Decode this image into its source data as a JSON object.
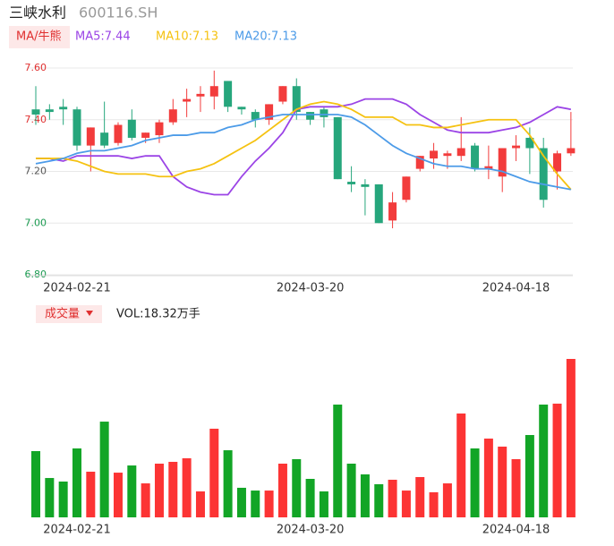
{
  "chart_data": [
    {
      "type": "candlestick",
      "title": "三峡水利",
      "subtitle": "600116.SH",
      "indicator_button": "MA/牛熊",
      "categories": [
        null,
        null,
        null,
        "2024-02-21",
        null,
        null,
        null,
        null,
        null,
        null,
        null,
        null,
        null,
        null,
        null,
        null,
        null,
        null,
        null,
        null,
        "2024-03-20",
        null,
        null,
        null,
        null,
        null,
        null,
        null,
        null,
        null,
        null,
        null,
        null,
        null,
        null,
        "2024-04-18",
        null,
        null,
        null,
        null
      ],
      "open": [
        7.44,
        7.44,
        7.45,
        7.44,
        7.3,
        7.35,
        7.31,
        7.4,
        7.33,
        7.34,
        7.39,
        7.47,
        7.49,
        7.49,
        7.55,
        7.45,
        7.43,
        7.4,
        7.47,
        7.53,
        7.43,
        7.44,
        7.41,
        7.16,
        7.15,
        7.15,
        7.01,
        7.09,
        7.21,
        7.25,
        7.26,
        7.26,
        7.3,
        7.21,
        7.18,
        7.29,
        7.33,
        7.29,
        7.2,
        7.27
      ],
      "close": [
        7.42,
        7.43,
        7.44,
        7.3,
        7.37,
        7.3,
        7.38,
        7.33,
        7.35,
        7.39,
        7.44,
        7.48,
        7.5,
        7.53,
        7.45,
        7.44,
        7.4,
        7.46,
        7.53,
        7.43,
        7.4,
        7.41,
        7.17,
        7.15,
        7.14,
        7.0,
        7.08,
        7.18,
        7.26,
        7.28,
        7.27,
        7.29,
        7.21,
        7.22,
        7.29,
        7.3,
        7.29,
        7.09,
        7.27,
        7.29
      ],
      "low": [
        7.38,
        7.4,
        7.38,
        7.28,
        7.2,
        7.29,
        7.3,
        7.32,
        7.31,
        7.31,
        7.38,
        7.41,
        7.43,
        7.44,
        7.43,
        7.42,
        7.37,
        7.38,
        7.46,
        7.4,
        7.38,
        7.37,
        7.17,
        7.12,
        7.03,
        7.0,
        6.98,
        7.08,
        7.2,
        7.21,
        7.21,
        7.24,
        7.2,
        7.17,
        7.12,
        7.24,
        7.19,
        7.06,
        7.13,
        7.26
      ],
      "high": [
        7.53,
        7.46,
        7.48,
        7.45,
        7.37,
        7.47,
        7.39,
        7.44,
        7.35,
        7.4,
        7.48,
        7.52,
        7.53,
        7.59,
        7.55,
        7.45,
        7.44,
        7.46,
        7.53,
        7.56,
        7.43,
        7.45,
        7.41,
        7.22,
        7.17,
        7.15,
        7.12,
        7.18,
        7.26,
        7.31,
        7.28,
        7.41,
        7.31,
        7.3,
        7.29,
        7.34,
        7.37,
        7.33,
        7.28,
        7.43
      ],
      "up_color": "#f23c3c",
      "down_color": "#26a67c",
      "series": [
        {
          "name": "MA5:7.44",
          "color": "#9b44e6",
          "values": [
            7.25,
            7.25,
            7.24,
            7.26,
            7.26,
            7.26,
            7.26,
            7.25,
            7.26,
            7.26,
            7.18,
            7.14,
            7.12,
            7.11,
            7.11,
            7.18,
            7.24,
            7.29,
            7.35,
            7.44,
            7.45,
            7.45,
            7.45,
            7.46,
            7.48,
            7.48,
            7.48,
            7.46,
            7.42,
            7.39,
            7.36,
            7.35,
            7.35,
            7.35,
            7.36,
            7.37,
            7.39,
            7.42,
            7.45,
            7.44
          ]
        },
        {
          "name": "MA10:7.13",
          "color": "#f5c211",
          "values": [
            7.25,
            7.25,
            7.25,
            7.24,
            7.22,
            7.2,
            7.19,
            7.19,
            7.19,
            7.18,
            7.18,
            7.2,
            7.21,
            7.23,
            7.26,
            7.29,
            7.32,
            7.36,
            7.4,
            7.44,
            7.46,
            7.47,
            7.46,
            7.44,
            7.41,
            7.41,
            7.41,
            7.38,
            7.38,
            7.37,
            7.37,
            7.38,
            7.39,
            7.4,
            7.4,
            7.4,
            7.34,
            7.26,
            7.19,
            7.13
          ]
        },
        {
          "name": "MA20:7.13",
          "color": "#4c9be8",
          "values": [
            7.23,
            7.24,
            7.25,
            7.27,
            7.28,
            7.28,
            7.29,
            7.3,
            7.32,
            7.33,
            7.34,
            7.34,
            7.35,
            7.35,
            7.37,
            7.38,
            7.4,
            7.41,
            7.42,
            7.42,
            7.42,
            7.42,
            7.42,
            7.41,
            7.38,
            7.34,
            7.3,
            7.27,
            7.25,
            7.23,
            7.22,
            7.22,
            7.21,
            7.21,
            7.2,
            7.18,
            7.16,
            7.15,
            7.14,
            7.13
          ]
        }
      ],
      "ylim": [
        6.8,
        7.6
      ],
      "yticks": [
        {
          "value": 7.6,
          "label": "7.60"
        },
        {
          "value": 7.4,
          "label": "7.40"
        },
        {
          "value": 7.2,
          "label": "7.20"
        },
        {
          "value": 7.0,
          "label": "7.00"
        },
        {
          "value": 6.8,
          "label": "6.80"
        }
      ],
      "ytick_colors": [
        "#e03030",
        "#e03030",
        "#555555",
        "#1a9a50",
        "#1a9a50"
      ],
      "grid": true
    },
    {
      "type": "bar",
      "title": "成交量",
      "subtitle": "VOL:18.32万手",
      "categories": [
        null,
        null,
        null,
        "2024-02-21",
        null,
        null,
        null,
        null,
        null,
        null,
        null,
        null,
        null,
        null,
        null,
        null,
        null,
        null,
        null,
        null,
        "2024-03-20",
        null,
        null,
        null,
        null,
        null,
        null,
        null,
        null,
        null,
        null,
        null,
        null,
        null,
        null,
        "2024-04-18",
        null,
        null,
        null,
        null
      ],
      "values": [
        7.66,
        4.55,
        4.14,
        7.97,
        5.28,
        11.07,
        5.17,
        6.0,
        3.93,
        6.21,
        6.42,
        6.83,
        3.0,
        10.25,
        7.76,
        3.42,
        3.1,
        3.1,
        6.21,
        6.73,
        4.45,
        3.0,
        13.04,
        6.21,
        4.97,
        3.83,
        4.35,
        3.1,
        4.66,
        2.9,
        3.93,
        12.01,
        7.97,
        9.11,
        8.18,
        6.73,
        9.52,
        13.04,
        13.15,
        18.32
      ],
      "up_color": "#fc3434",
      "down_color": "#12a526"
    }
  ]
}
